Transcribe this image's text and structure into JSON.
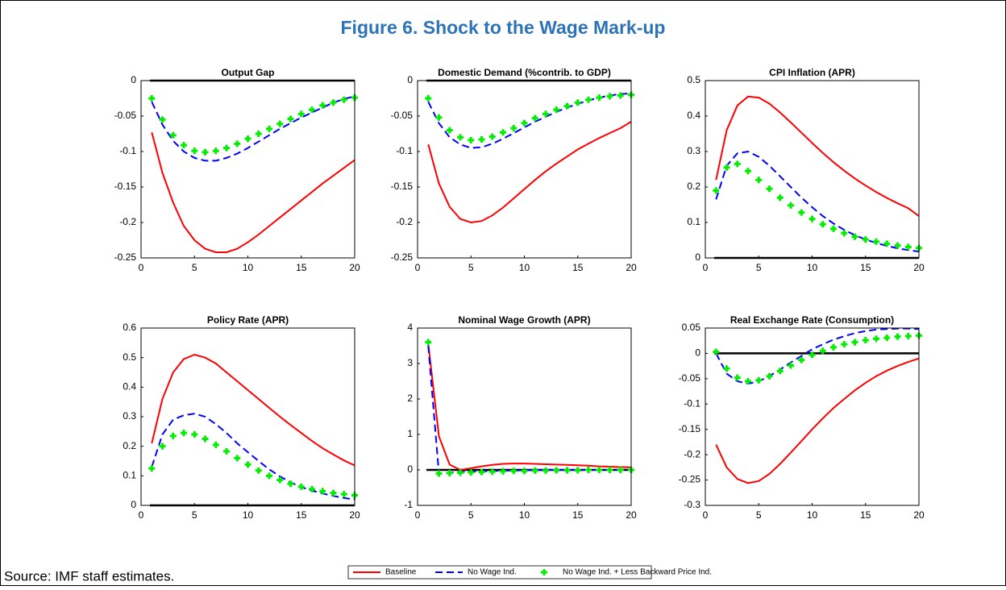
{
  "title": "Figure 6. Shock to the Wage Mark-up",
  "source": "Source: IMF staff estimates.",
  "legend": [
    {
      "name": "Baseline",
      "color": "#ff0000",
      "style": "solid"
    },
    {
      "name": "No Wage Ind.",
      "color": "#0000ff",
      "style": "dashed"
    },
    {
      "name": "No Wage Ind. + Less Backward Price Ind.",
      "color": "#00ee00",
      "style": "plus"
    }
  ],
  "chart_data": [
    {
      "type": "line",
      "title": "Output Gap",
      "x": [
        1,
        2,
        3,
        4,
        5,
        6,
        7,
        8,
        9,
        10,
        11,
        12,
        13,
        14,
        15,
        16,
        17,
        18,
        19,
        20
      ],
      "xlim": [
        0,
        20
      ],
      "xticks": [
        0,
        5,
        10,
        15,
        20
      ],
      "ylim": [
        -0.25,
        0
      ],
      "yticks": [
        -0.25,
        -0.2,
        -0.15,
        -0.1,
        -0.05,
        0
      ],
      "hline": 0,
      "series": [
        {
          "values": [
            -0.073,
            -0.13,
            -0.172,
            -0.205,
            -0.225,
            -0.237,
            -0.242,
            -0.242,
            -0.237,
            -0.228,
            -0.217,
            -0.205,
            -0.193,
            -0.181,
            -0.169,
            -0.157,
            -0.145,
            -0.134,
            -0.123,
            -0.112
          ]
        },
        {
          "values": [
            -0.03,
            -0.062,
            -0.085,
            -0.1,
            -0.109,
            -0.113,
            -0.113,
            -0.109,
            -0.103,
            -0.095,
            -0.086,
            -0.077,
            -0.068,
            -0.06,
            -0.052,
            -0.045,
            -0.038,
            -0.031,
            -0.026,
            -0.022
          ]
        },
        {
          "values": [
            -0.025,
            -0.055,
            -0.077,
            -0.091,
            -0.099,
            -0.101,
            -0.099,
            -0.095,
            -0.089,
            -0.082,
            -0.075,
            -0.068,
            -0.061,
            -0.054,
            -0.047,
            -0.041,
            -0.035,
            -0.031,
            -0.027,
            -0.024
          ]
        }
      ]
    },
    {
      "type": "line",
      "title": "Domestic Demand (%contrib. to GDP)",
      "x": [
        1,
        2,
        3,
        4,
        5,
        6,
        7,
        8,
        9,
        10,
        11,
        12,
        13,
        14,
        15,
        16,
        17,
        18,
        19,
        20
      ],
      "xlim": [
        0,
        20
      ],
      "xticks": [
        0,
        5,
        10,
        15,
        20
      ],
      "ylim": [
        -0.25,
        0
      ],
      "yticks": [
        -0.25,
        -0.2,
        -0.15,
        -0.1,
        -0.05,
        0
      ],
      "hline": 0,
      "series": [
        {
          "values": [
            -0.09,
            -0.145,
            -0.178,
            -0.195,
            -0.2,
            -0.198,
            -0.19,
            -0.179,
            -0.166,
            -0.153,
            -0.14,
            -0.128,
            -0.117,
            -0.107,
            -0.097,
            -0.089,
            -0.081,
            -0.074,
            -0.067,
            -0.058
          ]
        },
        {
          "values": [
            -0.03,
            -0.06,
            -0.08,
            -0.09,
            -0.095,
            -0.094,
            -0.089,
            -0.082,
            -0.074,
            -0.066,
            -0.058,
            -0.051,
            -0.044,
            -0.038,
            -0.033,
            -0.028,
            -0.024,
            -0.021,
            -0.019,
            -0.018
          ]
        },
        {
          "values": [
            -0.025,
            -0.052,
            -0.07,
            -0.08,
            -0.084,
            -0.083,
            -0.079,
            -0.073,
            -0.067,
            -0.06,
            -0.053,
            -0.047,
            -0.041,
            -0.036,
            -0.031,
            -0.027,
            -0.024,
            -0.022,
            -0.021,
            -0.02
          ]
        }
      ]
    },
    {
      "type": "line",
      "title": "CPI Inflation (APR)",
      "x": [
        1,
        2,
        3,
        4,
        5,
        6,
        7,
        8,
        9,
        10,
        11,
        12,
        13,
        14,
        15,
        16,
        17,
        18,
        19,
        20
      ],
      "xlim": [
        0,
        20
      ],
      "xticks": [
        0,
        5,
        10,
        15,
        20
      ],
      "ylim": [
        0,
        0.5
      ],
      "yticks": [
        0,
        0.1,
        0.2,
        0.3,
        0.4,
        0.5
      ],
      "hline": 0,
      "series": [
        {
          "values": [
            0.22,
            0.36,
            0.43,
            0.455,
            0.452,
            0.435,
            0.41,
            0.382,
            0.353,
            0.324,
            0.296,
            0.27,
            0.246,
            0.224,
            0.204,
            0.186,
            0.169,
            0.154,
            0.14,
            0.118
          ]
        },
        {
          "values": [
            0.165,
            0.26,
            0.295,
            0.3,
            0.285,
            0.26,
            0.23,
            0.2,
            0.17,
            0.143,
            0.118,
            0.097,
            0.079,
            0.064,
            0.052,
            0.042,
            0.034,
            0.027,
            0.022,
            0.018
          ]
        },
        {
          "values": [
            0.19,
            0.255,
            0.265,
            0.245,
            0.22,
            0.195,
            0.17,
            0.148,
            0.128,
            0.11,
            0.095,
            0.082,
            0.07,
            0.06,
            0.052,
            0.046,
            0.04,
            0.035,
            0.031,
            0.028
          ]
        }
      ]
    },
    {
      "type": "line",
      "title": "Policy Rate (APR)",
      "x": [
        1,
        2,
        3,
        4,
        5,
        6,
        7,
        8,
        9,
        10,
        11,
        12,
        13,
        14,
        15,
        16,
        17,
        18,
        19,
        20
      ],
      "xlim": [
        0,
        20
      ],
      "xticks": [
        0,
        5,
        10,
        15,
        20
      ],
      "ylim": [
        0,
        0.6
      ],
      "yticks": [
        0,
        0.1,
        0.2,
        0.3,
        0.4,
        0.5,
        0.6
      ],
      "hline": 0,
      "series": [
        {
          "values": [
            0.21,
            0.36,
            0.45,
            0.495,
            0.51,
            0.5,
            0.48,
            0.45,
            0.42,
            0.39,
            0.36,
            0.33,
            0.3,
            0.272,
            0.245,
            0.218,
            0.193,
            0.172,
            0.152,
            0.135
          ]
        },
        {
          "values": [
            0.13,
            0.24,
            0.29,
            0.305,
            0.31,
            0.3,
            0.275,
            0.245,
            0.21,
            0.18,
            0.15,
            0.122,
            0.098,
            0.078,
            0.062,
            0.05,
            0.04,
            0.032,
            0.025,
            0.02
          ]
        },
        {
          "values": [
            0.125,
            0.2,
            0.235,
            0.245,
            0.24,
            0.225,
            0.205,
            0.183,
            0.16,
            0.138,
            0.118,
            0.1,
            0.086,
            0.073,
            0.063,
            0.055,
            0.048,
            0.042,
            0.038,
            0.034
          ]
        }
      ]
    },
    {
      "type": "line",
      "title": "Nominal Wage Growth (APR)",
      "x": [
        1,
        2,
        3,
        4,
        5,
        6,
        7,
        8,
        9,
        10,
        11,
        12,
        13,
        14,
        15,
        16,
        17,
        18,
        19,
        20
      ],
      "xlim": [
        0,
        20
      ],
      "xticks": [
        0,
        5,
        10,
        15,
        20
      ],
      "ylim": [
        -1,
        4
      ],
      "yticks": [
        -1,
        0,
        1,
        2,
        3,
        4
      ],
      "hline": 0,
      "series": [
        {
          "values": [
            3.55,
            0.95,
            0.15,
            0.0,
            0.05,
            0.1,
            0.14,
            0.17,
            0.18,
            0.18,
            0.17,
            0.16,
            0.15,
            0.14,
            0.13,
            0.12,
            0.1,
            0.09,
            0.08,
            0.07
          ]
        },
        {
          "values": [
            3.5,
            -0.1,
            -0.08,
            -0.06,
            -0.05,
            -0.04,
            -0.03,
            -0.02,
            -0.02,
            -0.01,
            -0.01,
            0,
            0,
            0,
            0,
            0,
            0,
            0,
            0,
            0
          ]
        },
        {
          "values": [
            3.6,
            -0.1,
            -0.09,
            -0.08,
            -0.07,
            -0.06,
            -0.05,
            -0.04,
            -0.03,
            -0.03,
            -0.02,
            -0.02,
            -0.01,
            -0.01,
            -0.01,
            0,
            0,
            0,
            0,
            0
          ]
        }
      ]
    },
    {
      "type": "line",
      "title": "Real Exchange Rate (Consumption)",
      "x": [
        1,
        2,
        3,
        4,
        5,
        6,
        7,
        8,
        9,
        10,
        11,
        12,
        13,
        14,
        15,
        16,
        17,
        18,
        19,
        20
      ],
      "xlim": [
        0,
        20
      ],
      "xticks": [
        0,
        5,
        10,
        15,
        20
      ],
      "ylim": [
        -0.3,
        0.05
      ],
      "yticks": [
        -0.3,
        -0.25,
        -0.2,
        -0.15,
        -0.1,
        -0.05,
        0,
        0.05
      ],
      "hline": 0,
      "series": [
        {
          "values": [
            -0.18,
            -0.225,
            -0.248,
            -0.256,
            -0.252,
            -0.238,
            -0.218,
            -0.196,
            -0.173,
            -0.15,
            -0.128,
            -0.108,
            -0.09,
            -0.073,
            -0.058,
            -0.045,
            -0.034,
            -0.025,
            -0.017,
            -0.01
          ]
        },
        {
          "values": [
            0,
            -0.04,
            -0.055,
            -0.06,
            -0.055,
            -0.045,
            -0.032,
            -0.018,
            -0.005,
            0.008,
            0.018,
            0.027,
            0.034,
            0.04,
            0.044,
            0.047,
            0.048,
            0.049,
            0.049,
            0.048
          ]
        },
        {
          "values": [
            0.003,
            -0.03,
            -0.048,
            -0.055,
            -0.053,
            -0.045,
            -0.035,
            -0.024,
            -0.013,
            -0.003,
            0.005,
            0.012,
            0.018,
            0.022,
            0.026,
            0.029,
            0.031,
            0.033,
            0.034,
            0.035
          ]
        }
      ]
    }
  ]
}
